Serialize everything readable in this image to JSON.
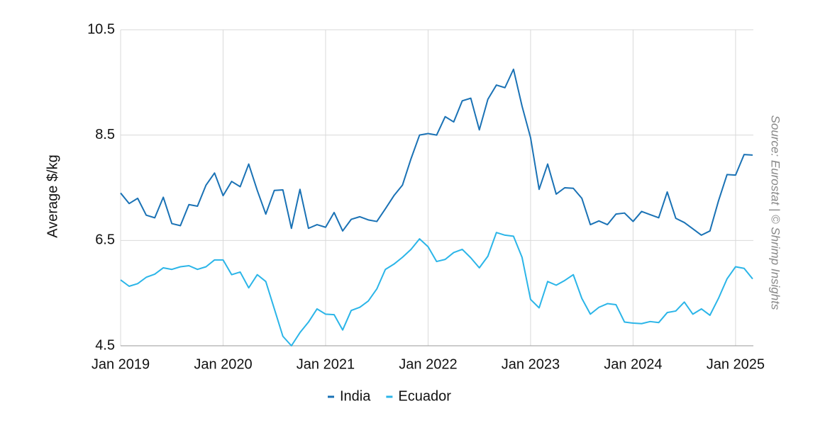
{
  "chart_data": {
    "type": "line",
    "y_label": "Average $/kg",
    "source": "Source: Eurostat | © Shrimp Insights",
    "x": [
      "2019-01",
      "2019-02",
      "2019-03",
      "2019-04",
      "2019-05",
      "2019-06",
      "2019-07",
      "2019-08",
      "2019-09",
      "2019-10",
      "2019-11",
      "2019-12",
      "2020-01",
      "2020-02",
      "2020-03",
      "2020-04",
      "2020-05",
      "2020-06",
      "2020-07",
      "2020-08",
      "2020-09",
      "2020-10",
      "2020-11",
      "2020-12",
      "2021-01",
      "2021-02",
      "2021-03",
      "2021-04",
      "2021-05",
      "2021-06",
      "2021-07",
      "2021-08",
      "2021-09",
      "2021-10",
      "2021-11",
      "2021-12",
      "2022-01",
      "2022-02",
      "2022-03",
      "2022-04",
      "2022-05",
      "2022-06",
      "2022-07",
      "2022-08",
      "2022-09",
      "2022-10",
      "2022-11",
      "2022-12",
      "2023-01",
      "2023-02",
      "2023-03",
      "2023-04",
      "2023-05",
      "2023-06",
      "2023-07",
      "2023-08",
      "2023-09",
      "2023-10",
      "2023-11",
      "2023-12",
      "2024-01",
      "2024-02",
      "2024-03",
      "2024-04",
      "2024-05",
      "2024-06",
      "2024-07",
      "2024-08",
      "2024-09",
      "2024-10",
      "2024-11",
      "2024-12",
      "2025-01",
      "2025-02",
      "2025-03"
    ],
    "series": [
      {
        "name": "India",
        "color": "#1a72b5",
        "values": [
          7.4,
          7.2,
          7.3,
          6.98,
          6.93,
          7.32,
          6.82,
          6.78,
          7.18,
          7.15,
          7.55,
          7.78,
          7.35,
          7.62,
          7.52,
          7.95,
          7.45,
          7.0,
          7.45,
          7.46,
          6.73,
          7.47,
          6.73,
          6.8,
          6.75,
          7.03,
          6.68,
          6.9,
          6.95,
          6.89,
          6.86,
          7.1,
          7.35,
          7.55,
          8.05,
          8.5,
          8.53,
          8.5,
          8.85,
          8.75,
          9.15,
          9.2,
          8.6,
          9.18,
          9.45,
          9.4,
          9.75,
          9.05,
          8.45,
          7.47,
          7.95,
          7.38,
          7.5,
          7.49,
          7.3,
          6.8,
          6.87,
          6.8,
          7.0,
          7.02,
          6.86,
          7.05,
          6.99,
          6.93,
          7.42,
          6.92,
          6.84,
          6.72,
          6.6,
          6.68,
          7.25,
          7.75,
          7.74,
          8.13,
          8.12
        ]
      },
      {
        "name": "Ecuador",
        "color": "#2bb5e8",
        "values": [
          5.75,
          5.63,
          5.68,
          5.8,
          5.86,
          5.98,
          5.95,
          6.0,
          6.02,
          5.95,
          6.0,
          6.13,
          6.13,
          5.85,
          5.9,
          5.6,
          5.85,
          5.72,
          5.2,
          4.68,
          4.5,
          4.75,
          4.95,
          5.2,
          5.1,
          5.09,
          4.8,
          5.17,
          5.23,
          5.35,
          5.58,
          5.95,
          6.05,
          6.18,
          6.33,
          6.53,
          6.38,
          6.1,
          6.14,
          6.27,
          6.33,
          6.17,
          5.98,
          6.2,
          6.65,
          6.6,
          6.58,
          6.18,
          5.38,
          5.22,
          5.72,
          5.65,
          5.74,
          5.85,
          5.4,
          5.1,
          5.23,
          5.3,
          5.28,
          4.95,
          4.93,
          4.92,
          4.96,
          4.94,
          5.13,
          5.16,
          5.33,
          5.1,
          5.2,
          5.08,
          5.4,
          5.77,
          6.0,
          5.97,
          5.77
        ]
      }
    ],
    "xticks": [
      {
        "value": "2019-01",
        "label": "Jan 2019"
      },
      {
        "value": "2020-01",
        "label": "Jan 2020"
      },
      {
        "value": "2021-01",
        "label": "Jan 2021"
      },
      {
        "value": "2022-01",
        "label": "Jan 2022"
      },
      {
        "value": "2023-01",
        "label": "Jan 2023"
      },
      {
        "value": "2024-01",
        "label": "Jan 2024"
      },
      {
        "value": "2025-01",
        "label": "Jan 2025"
      }
    ],
    "ylim": [
      4.5,
      10.5
    ],
    "yticks": [
      4.5,
      6.5,
      8.5,
      10.5
    ],
    "grid": true,
    "legend": "bottom"
  }
}
